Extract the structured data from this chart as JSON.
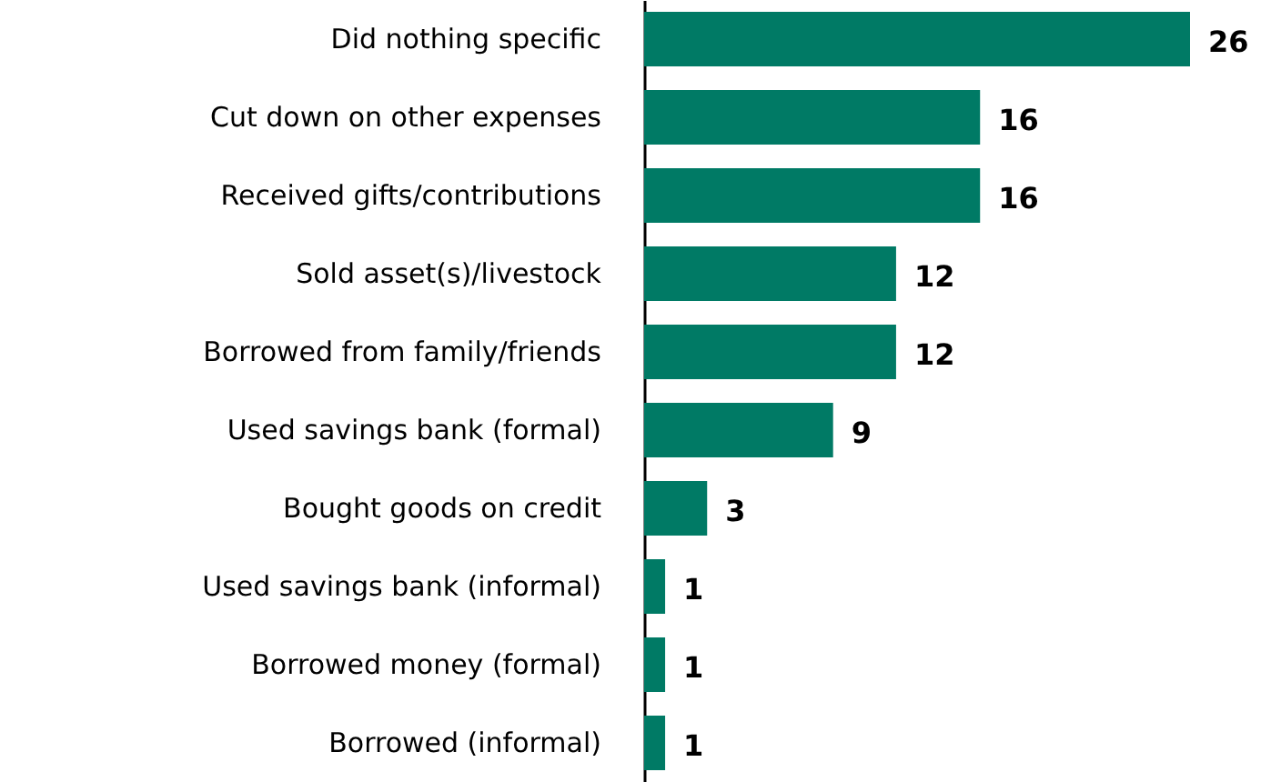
{
  "chart_data": {
    "type": "bar",
    "orientation": "horizontal",
    "categories": [
      "Did nothing specific",
      "Cut down on other expenses",
      "Received gifts/contributions",
      "Sold asset(s)/livestock",
      "Borrowed from family/friends",
      "Used savings bank (formal)",
      "Bought goods on credit",
      "Used savings bank (informal)",
      "Borrowed money (formal)",
      "Borrowed (informal)"
    ],
    "values": [
      26,
      16,
      16,
      12,
      12,
      9,
      3,
      1,
      1,
      1
    ],
    "color": "#007a65",
    "data_labels": true
  }
}
